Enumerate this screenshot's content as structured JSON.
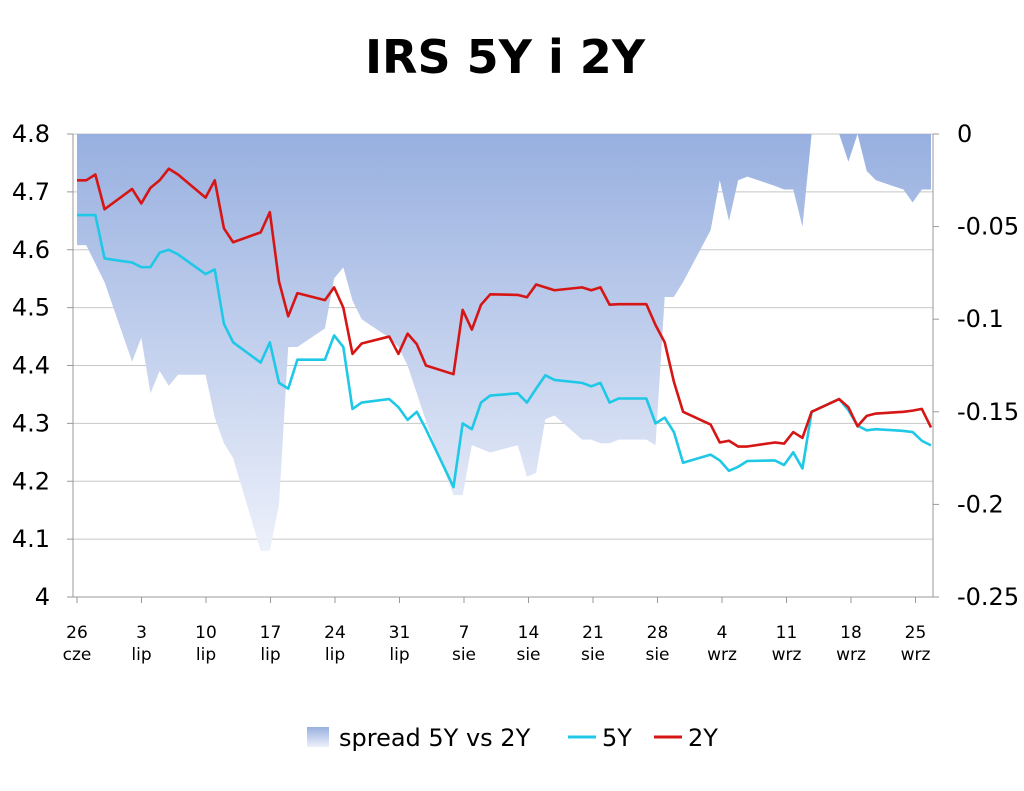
{
  "chart_data": {
    "type": "line",
    "title": "IRS 5Y i 2Y",
    "x_ticks": [
      {
        "day": "26",
        "month": "cze"
      },
      {
        "day": "3",
        "month": "lip"
      },
      {
        "day": "10",
        "month": "lip"
      },
      {
        "day": "17",
        "month": "lip"
      },
      {
        "day": "24",
        "month": "lip"
      },
      {
        "day": "31",
        "month": "lip"
      },
      {
        "day": "7",
        "month": "sie"
      },
      {
        "day": "14",
        "month": "sie"
      },
      {
        "day": "21",
        "month": "sie"
      },
      {
        "day": "28",
        "month": "sie"
      },
      {
        "day": "4",
        "month": "wrz"
      },
      {
        "day": "11",
        "month": "wrz"
      },
      {
        "day": "18",
        "month": "wrz"
      },
      {
        "day": "25",
        "month": "wrz"
      }
    ],
    "x_range": [
      "2008-06-26",
      "2008-09-27"
    ],
    "y_left": {
      "ticks": [
        "4",
        "4.1",
        "4.2",
        "4.3",
        "4.4",
        "4.5",
        "4.6",
        "4.7",
        "4.8"
      ],
      "range": [
        4,
        4.8
      ]
    },
    "y_right": {
      "ticks": [
        "-0.25",
        "-0.2",
        "-0.15",
        "-0.1",
        "-0.05",
        "0"
      ],
      "range": [
        -0.25,
        0
      ]
    },
    "grid": true,
    "legend_position": "bottom",
    "series": [
      {
        "name": "spread 5Y vs 2Y",
        "type": "area",
        "axis": "right",
        "color_top": "#98B0E0",
        "color_bottom": "#ECF0FA",
        "x": [
          "2008-06-26",
          "2008-06-27",
          "2008-06-28",
          "2008-06-29",
          "2008-07-02",
          "2008-07-03",
          "2008-07-04",
          "2008-07-05",
          "2008-07-06",
          "2008-07-07",
          "2008-07-10",
          "2008-07-11",
          "2008-07-12",
          "2008-07-13",
          "2008-07-16",
          "2008-07-17",
          "2008-07-18",
          "2008-07-19",
          "2008-07-20",
          "2008-07-23",
          "2008-07-24",
          "2008-07-25",
          "2008-07-26",
          "2008-07-27",
          "2008-07-30",
          "2008-07-31",
          "2008-08-01",
          "2008-08-02",
          "2008-08-03",
          "2008-08-06",
          "2008-08-07",
          "2008-08-08",
          "2008-08-09",
          "2008-08-10",
          "2008-08-13",
          "2008-08-14",
          "2008-08-15",
          "2008-08-16",
          "2008-08-17",
          "2008-08-20",
          "2008-08-21",
          "2008-08-22",
          "2008-08-23",
          "2008-08-24",
          "2008-08-27",
          "2008-08-28",
          "2008-08-29",
          "2008-08-30",
          "2008-08-31",
          "2008-09-03",
          "2008-09-04",
          "2008-09-05",
          "2008-09-06",
          "2008-09-07",
          "2008-09-10",
          "2008-09-11",
          "2008-09-12",
          "2008-09-13",
          "2008-09-14",
          "2008-09-17",
          "2008-09-18",
          "2008-09-19",
          "2008-09-20",
          "2008-09-21",
          "2008-09-24",
          "2008-09-25",
          "2008-09-26",
          "2008-09-27"
        ],
        "values": [
          -0.06,
          -0.06,
          -0.07,
          -0.08,
          -0.123,
          -0.11,
          -0.14,
          -0.128,
          -0.136,
          -0.13,
          -0.13,
          -0.153,
          -0.167,
          -0.175,
          -0.225,
          -0.225,
          -0.2,
          -0.115,
          -0.115,
          -0.105,
          -0.078,
          -0.072,
          -0.09,
          -0.1,
          -0.11,
          -0.115,
          -0.125,
          -0.14,
          -0.155,
          -0.195,
          -0.195,
          -0.168,
          -0.17,
          -0.172,
          -0.168,
          -0.185,
          -0.183,
          -0.154,
          -0.152,
          -0.165,
          -0.165,
          -0.167,
          -0.167,
          -0.165,
          -0.165,
          -0.168,
          -0.088,
          -0.088,
          -0.08,
          -0.052,
          -0.025,
          -0.047,
          -0.025,
          -0.023,
          -0.028,
          -0.03,
          -0.03,
          -0.05,
          0,
          0,
          -0.015,
          0,
          -0.02,
          -0.025,
          -0.03,
          -0.037,
          -0.03,
          -0.03
        ]
      },
      {
        "name": "5Y",
        "type": "line",
        "axis": "left",
        "color": "#1EC8E6",
        "x": [
          "2008-06-26",
          "2008-06-27",
          "2008-06-28",
          "2008-06-29",
          "2008-07-02",
          "2008-07-03",
          "2008-07-04",
          "2008-07-05",
          "2008-07-06",
          "2008-07-07",
          "2008-07-10",
          "2008-07-11",
          "2008-07-12",
          "2008-07-13",
          "2008-07-16",
          "2008-07-17",
          "2008-07-18",
          "2008-07-19",
          "2008-07-20",
          "2008-07-23",
          "2008-07-24",
          "2008-07-25",
          "2008-07-26",
          "2008-07-27",
          "2008-07-30",
          "2008-07-31",
          "2008-08-01",
          "2008-08-02",
          "2008-08-03",
          "2008-08-06",
          "2008-08-07",
          "2008-08-08",
          "2008-08-09",
          "2008-08-10",
          "2008-08-13",
          "2008-08-14",
          "2008-08-15",
          "2008-08-16",
          "2008-08-17",
          "2008-08-20",
          "2008-08-21",
          "2008-08-22",
          "2008-08-23",
          "2008-08-24",
          "2008-08-27",
          "2008-08-28",
          "2008-08-29",
          "2008-08-30",
          "2008-08-31",
          "2008-09-03",
          "2008-09-04",
          "2008-09-05",
          "2008-09-06",
          "2008-09-07",
          "2008-09-10",
          "2008-09-11",
          "2008-09-12",
          "2008-09-13",
          "2008-09-14",
          "2008-09-17",
          "2008-09-18",
          "2008-09-19",
          "2008-09-20",
          "2008-09-21",
          "2008-09-24",
          "2008-09-25",
          "2008-09-26",
          "2008-09-27"
        ],
        "values": [
          4.66,
          4.66,
          4.66,
          4.585,
          4.578,
          4.57,
          4.57,
          4.595,
          4.6,
          4.592,
          4.558,
          4.566,
          4.472,
          4.44,
          4.405,
          4.44,
          4.37,
          4.36,
          4.41,
          4.41,
          4.452,
          4.432,
          4.325,
          4.336,
          4.342,
          4.328,
          4.306,
          4.32,
          4.29,
          4.19,
          4.3,
          4.29,
          4.336,
          4.348,
          4.352,
          4.336,
          4.36,
          4.383,
          4.375,
          4.37,
          4.364,
          4.37,
          4.336,
          4.343,
          4.343,
          4.3,
          4.31,
          4.285,
          4.232,
          4.246,
          4.236,
          4.218,
          4.225,
          4.235,
          4.236,
          4.228,
          4.25,
          4.222,
          4.32,
          4.342,
          4.323,
          4.296,
          4.288,
          4.29,
          4.287,
          4.285,
          4.27,
          4.262
        ]
      },
      {
        "name": "2Y",
        "type": "line",
        "axis": "left",
        "color": "#D61515",
        "x": [
          "2008-06-26",
          "2008-06-27",
          "2008-06-28",
          "2008-06-29",
          "2008-07-02",
          "2008-07-03",
          "2008-07-04",
          "2008-07-05",
          "2008-07-06",
          "2008-07-07",
          "2008-07-10",
          "2008-07-11",
          "2008-07-12",
          "2008-07-13",
          "2008-07-16",
          "2008-07-17",
          "2008-07-18",
          "2008-07-19",
          "2008-07-20",
          "2008-07-23",
          "2008-07-24",
          "2008-07-25",
          "2008-07-26",
          "2008-07-27",
          "2008-07-30",
          "2008-07-31",
          "2008-08-01",
          "2008-08-02",
          "2008-08-03",
          "2008-08-06",
          "2008-08-07",
          "2008-08-08",
          "2008-08-09",
          "2008-08-10",
          "2008-08-13",
          "2008-08-14",
          "2008-08-15",
          "2008-08-16",
          "2008-08-17",
          "2008-08-20",
          "2008-08-21",
          "2008-08-22",
          "2008-08-23",
          "2008-08-24",
          "2008-08-27",
          "2008-08-28",
          "2008-08-29",
          "2008-08-30",
          "2008-08-31",
          "2008-09-03",
          "2008-09-04",
          "2008-09-05",
          "2008-09-06",
          "2008-09-07",
          "2008-09-10",
          "2008-09-11",
          "2008-09-12",
          "2008-09-13",
          "2008-09-14",
          "2008-09-17",
          "2008-09-18",
          "2008-09-19",
          "2008-09-20",
          "2008-09-21",
          "2008-09-24",
          "2008-09-25",
          "2008-09-26",
          "2008-09-27"
        ],
        "values": [
          4.72,
          4.72,
          4.73,
          4.67,
          4.705,
          4.68,
          4.707,
          4.72,
          4.74,
          4.73,
          4.69,
          4.72,
          4.637,
          4.613,
          4.63,
          4.665,
          4.545,
          4.485,
          4.525,
          4.513,
          4.535,
          4.5,
          4.42,
          4.438,
          4.45,
          4.42,
          4.455,
          4.437,
          4.4,
          4.385,
          4.496,
          4.462,
          4.505,
          4.523,
          4.522,
          4.518,
          4.54,
          4.535,
          4.53,
          4.535,
          4.53,
          4.535,
          4.505,
          4.506,
          4.506,
          4.47,
          4.44,
          4.372,
          4.32,
          4.298,
          4.267,
          4.27,
          4.26,
          4.26,
          4.267,
          4.265,
          4.285,
          4.275,
          4.32,
          4.342,
          4.328,
          4.295,
          4.313,
          4.317,
          4.32,
          4.322,
          4.325,
          4.293
        ]
      }
    ]
  }
}
